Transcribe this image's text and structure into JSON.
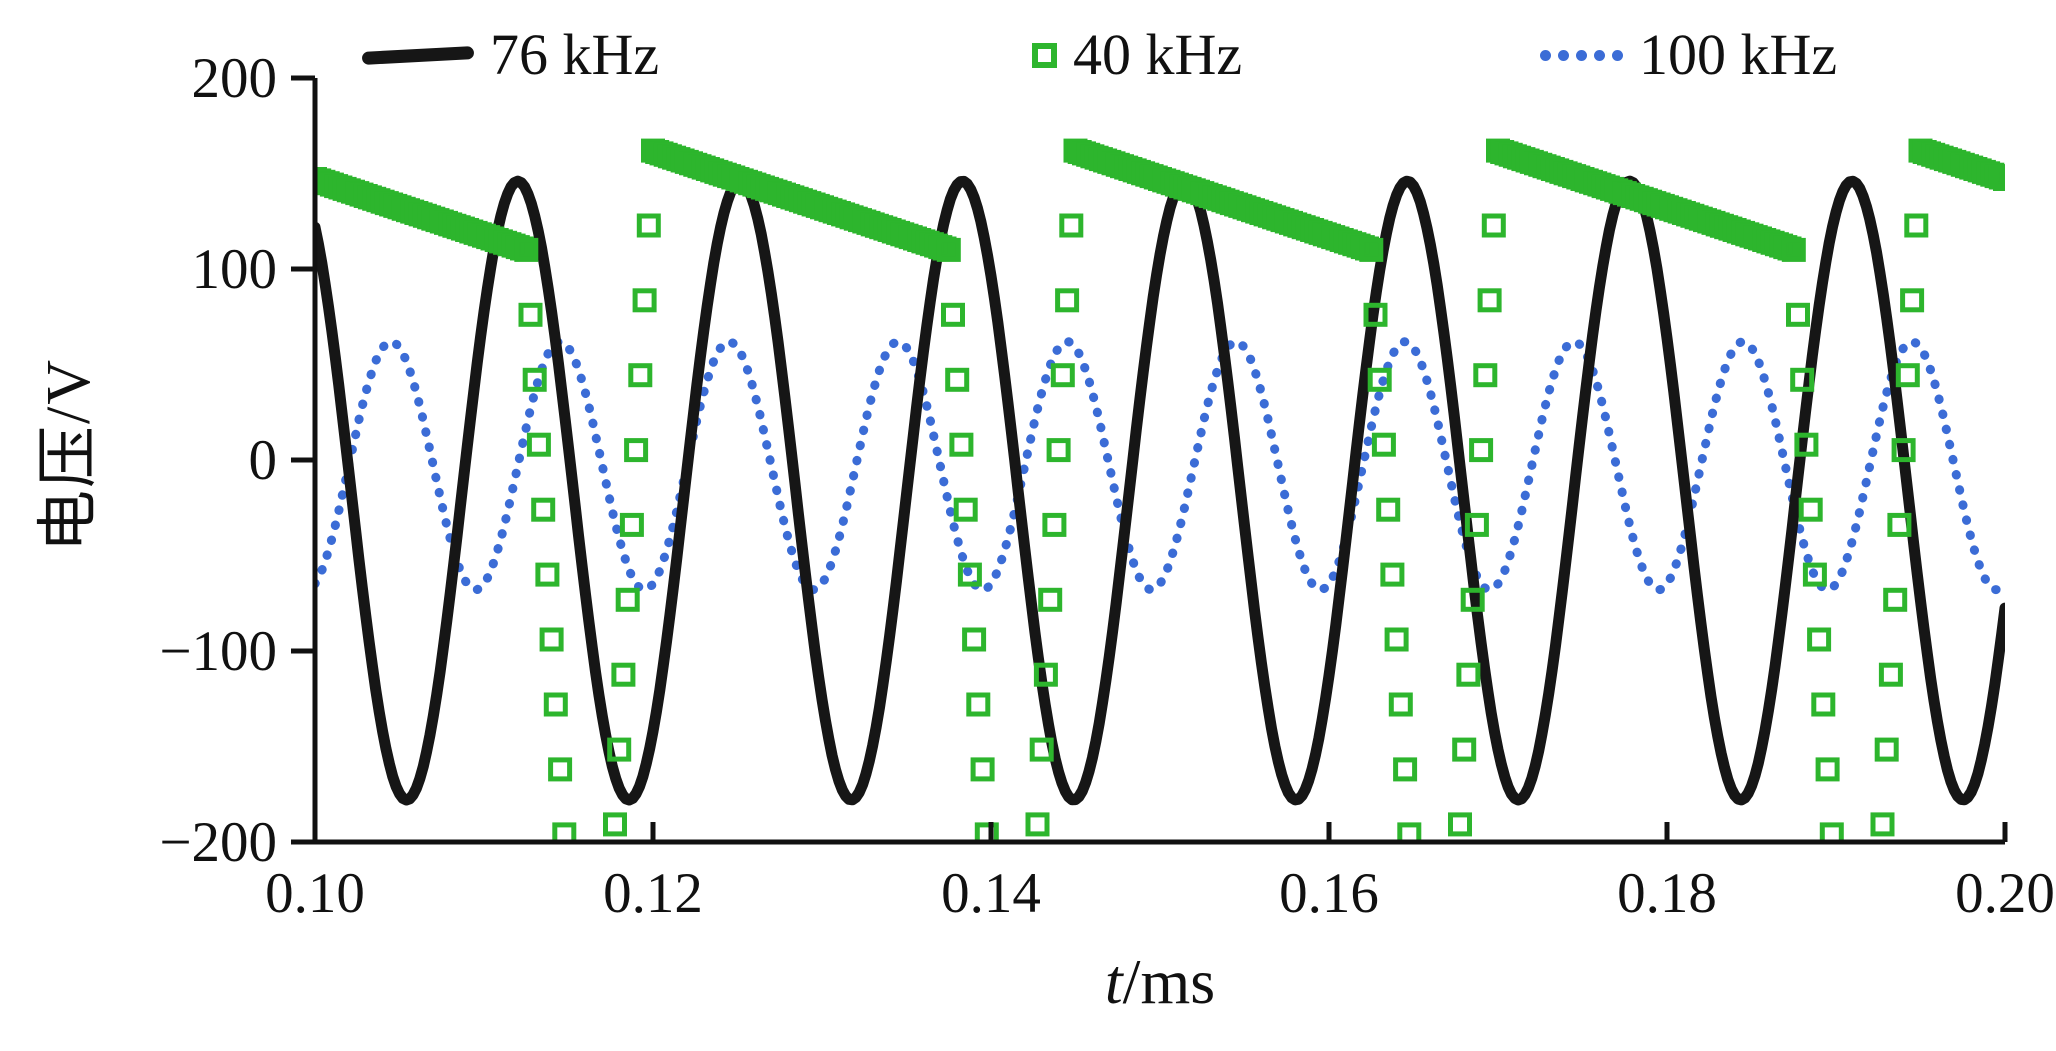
{
  "page": {
    "background": "#ffffff"
  },
  "chart_data": {
    "type": "line",
    "title": "",
    "xlabel_var": "t",
    "xlabel_unit": "/ms",
    "ylabel": "电压/V",
    "xlim": [
      0.1,
      0.2
    ],
    "ylim": [
      -200,
      200
    ],
    "grid": false,
    "legend_position": "top",
    "x_ticks": {
      "values": [
        0.1,
        0.12,
        0.14,
        0.16,
        0.18,
        0.2
      ],
      "labels": [
        "0.10",
        "0.12",
        "0.14",
        "0.16",
        "0.18",
        "0.20"
      ]
    },
    "y_ticks": {
      "values": [
        -200,
        -100,
        0,
        100,
        200
      ],
      "labels": [
        "−200",
        "−100",
        "0",
        "100",
        "200"
      ]
    },
    "series": [
      {
        "name": "76 kHz",
        "color": "#161616",
        "style": "solid-line",
        "line_width": 11,
        "z": 2,
        "sample_step_ms": 0.0002,
        "waveform": {
          "kind": "sine",
          "frequency_per_ms": 76,
          "amplitude": 162,
          "offset": -16,
          "peak_time_ms": 0.112
        }
      },
      {
        "name": "40 kHz",
        "color": "#2db52d",
        "style": "open-square-markers",
        "marker_size": 19,
        "marker_stroke": 5,
        "z": 3,
        "sample_step_ms": 0.00025,
        "waveform": {
          "kind": "flyback",
          "period_ms": 0.025,
          "drop_start_ms": 0.1125,
          "top_start_v": 162,
          "top_end_v": 110,
          "bottom_v": -230,
          "fall_duration_ms": 0.0025,
          "bottom_duration_ms": 0.0025,
          "rise_duration_ms": 0.0025
        }
      },
      {
        "name": "100 kHz",
        "color": "#3b6cd6",
        "style": "dotted-line",
        "line_width": 9,
        "z": 1,
        "sample_step_ms": 0.0002,
        "waveform": {
          "kind": "sine",
          "frequency_per_ms": 100,
          "amplitude": 65,
          "offset": -3,
          "peak_time_ms": 0.1045
        }
      }
    ]
  }
}
